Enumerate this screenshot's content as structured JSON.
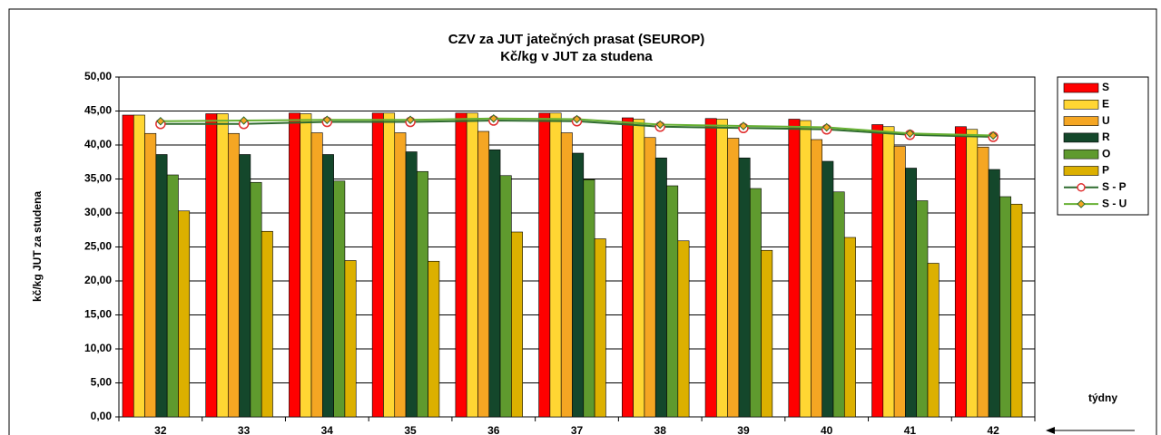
{
  "chart_data": {
    "type": "bar",
    "title": "CZV za JUT jatečných prasat (SEUROP)",
    "subtitle": "Kč/kg v JUT za studena",
    "y_label": "kč/kg JUT za studena",
    "x_label": "týdny",
    "categories": [
      "32",
      "33",
      "34",
      "35",
      "36",
      "37",
      "38",
      "39",
      "40",
      "41",
      "42"
    ],
    "series": [
      {
        "name": "S",
        "type": "bar",
        "color": "#ff0000",
        "values": [
          44.4,
          44.6,
          44.7,
          44.7,
          44.7,
          44.7,
          44.0,
          43.9,
          43.8,
          43.0,
          42.7
        ]
      },
      {
        "name": "E",
        "type": "bar",
        "color": "#ffd633",
        "values": [
          44.4,
          44.6,
          44.6,
          44.7,
          44.7,
          44.7,
          43.8,
          43.8,
          43.6,
          42.7,
          42.3
        ]
      },
      {
        "name": "U",
        "type": "bar",
        "color": "#f5a623",
        "values": [
          41.7,
          41.7,
          41.8,
          41.8,
          42.0,
          41.8,
          41.1,
          41.0,
          40.8,
          39.8,
          39.7
        ]
      },
      {
        "name": "R",
        "type": "bar",
        "color": "#14472b",
        "values": [
          38.6,
          38.6,
          38.6,
          39.0,
          39.3,
          38.8,
          38.1,
          38.1,
          37.6,
          36.6,
          36.4
        ]
      },
      {
        "name": "O",
        "type": "bar",
        "color": "#5f9a2e",
        "values": [
          35.6,
          34.5,
          34.7,
          36.1,
          35.5,
          34.9,
          34.0,
          33.6,
          33.1,
          31.8,
          32.4
        ]
      },
      {
        "name": "P",
        "type": "bar",
        "color": "#dcb000",
        "values": [
          30.3,
          27.3,
          23.0,
          22.9,
          27.2,
          26.2,
          25.9,
          24.5,
          26.4,
          22.6,
          31.3
        ]
      },
      {
        "name": "S - P",
        "type": "line",
        "color": "#2e6b2e",
        "marker_color": "#ffffff",
        "marker_edge": "#e03030",
        "marker": "circle",
        "values": [
          43.1,
          43.1,
          43.4,
          43.4,
          43.6,
          43.5,
          42.7,
          42.5,
          42.3,
          41.5,
          41.2
        ]
      },
      {
        "name": "S - U",
        "type": "line",
        "color": "#66b032",
        "marker_color": "#f5a623",
        "marker_edge": "#2e6b2e",
        "marker": "diamond",
        "values": [
          43.5,
          43.6,
          43.7,
          43.7,
          43.9,
          43.8,
          43.0,
          42.8,
          42.6,
          41.7,
          41.4
        ]
      }
    ],
    "ylim": [
      0,
      50
    ],
    "yticks": [
      {
        "value": 0,
        "label": "0,00"
      },
      {
        "value": 5,
        "label": "5,00"
      },
      {
        "value": 10,
        "label": "10,00"
      },
      {
        "value": 15,
        "label": "15,00"
      },
      {
        "value": 20,
        "label": "20,00"
      },
      {
        "value": 25,
        "label": "25,00"
      },
      {
        "value": 30,
        "label": "30,00"
      },
      {
        "value": 35,
        "label": "35,00"
      },
      {
        "value": 40,
        "label": "40,00"
      },
      {
        "value": 45,
        "label": "45,00"
      },
      {
        "value": 50,
        "label": "50,00"
      }
    ],
    "grid": true,
    "legend": "right"
  }
}
